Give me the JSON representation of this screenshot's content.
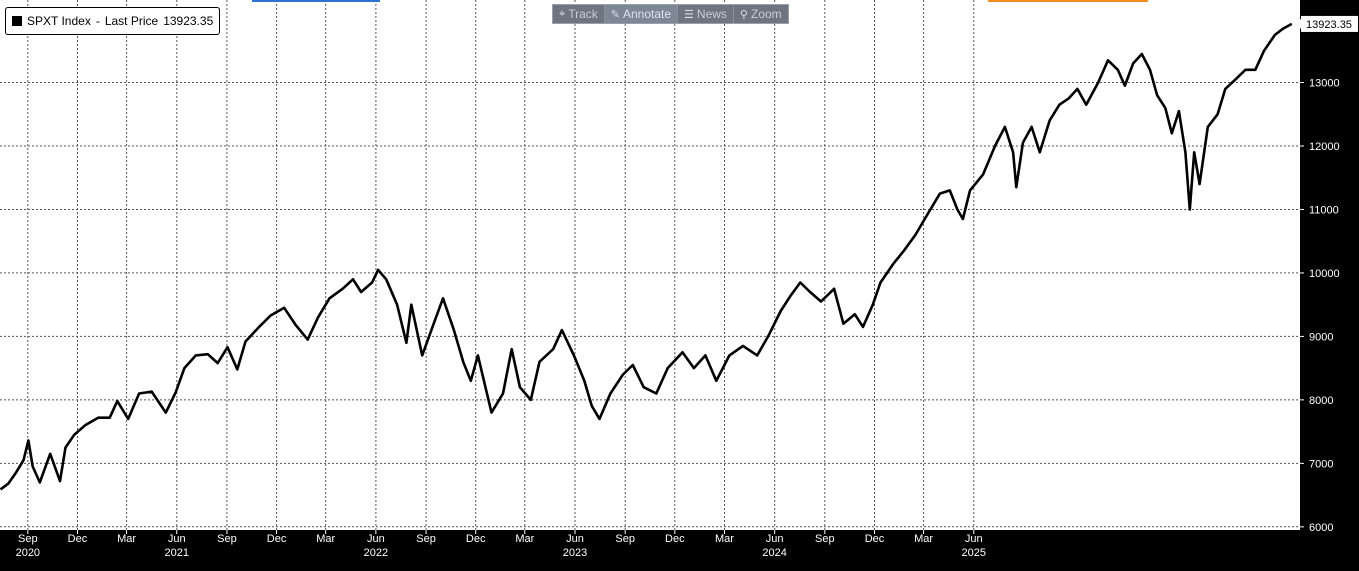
{
  "toolbar": {
    "buttons": [
      {
        "label": "Track",
        "icon": "crosshair-icon",
        "glyph": "⌖"
      },
      {
        "label": "Annotate",
        "icon": "pencil-icon",
        "glyph": "✎"
      },
      {
        "label": "News",
        "icon": "news-icon",
        "glyph": "☰"
      },
      {
        "label": "Zoom",
        "icon": "magnifier-icon",
        "glyph": "⚲"
      }
    ],
    "active": "Annotate"
  },
  "legend": {
    "series": "SPXT Index",
    "separator": "-",
    "field": "Last Price",
    "value": "13923.35"
  },
  "chart_data": {
    "type": "line",
    "series": [
      {
        "name": "SPXT Index - Last Price",
        "color": "#000000",
        "points": [
          [
            "2020-07-13",
            6590
          ],
          [
            "2020-07-27",
            6680
          ],
          [
            "2020-08-10",
            6850
          ],
          [
            "2020-08-24",
            7050
          ],
          [
            "2020-09-02",
            7360
          ],
          [
            "2020-09-10",
            6950
          ],
          [
            "2020-09-23",
            6700
          ],
          [
            "2020-10-12",
            7150
          ],
          [
            "2020-10-30",
            6720
          ],
          [
            "2020-11-09",
            7250
          ],
          [
            "2020-11-25",
            7450
          ],
          [
            "2020-12-15",
            7600
          ],
          [
            "2021-01-08",
            7720
          ],
          [
            "2021-01-29",
            7720
          ],
          [
            "2021-02-12",
            7980
          ],
          [
            "2021-03-04",
            7700
          ],
          [
            "2021-03-24",
            8100
          ],
          [
            "2021-04-16",
            8130
          ],
          [
            "2021-05-12",
            7800
          ],
          [
            "2021-05-30",
            8120
          ],
          [
            "2021-06-15",
            8500
          ],
          [
            "2021-07-06",
            8700
          ],
          [
            "2021-07-28",
            8720
          ],
          [
            "2021-08-15",
            8580
          ],
          [
            "2021-09-02",
            8830
          ],
          [
            "2021-09-20",
            8480
          ],
          [
            "2021-10-05",
            8920
          ],
          [
            "2021-10-30",
            9150
          ],
          [
            "2021-11-20",
            9330
          ],
          [
            "2021-12-15",
            9450
          ],
          [
            "2022-01-05",
            9180
          ],
          [
            "2022-01-27",
            8950
          ],
          [
            "2022-02-15",
            9300
          ],
          [
            "2022-03-08",
            9600
          ],
          [
            "2022-04-01",
            9750
          ],
          [
            "2022-04-20",
            9900
          ],
          [
            "2022-05-05",
            9700
          ],
          [
            "2022-05-25",
            9850
          ],
          [
            "2022-06-05",
            10050
          ],
          [
            "2022-06-20",
            9900
          ],
          [
            "2022-07-10",
            9500
          ],
          [
            "2022-07-27",
            8900
          ],
          [
            "2022-08-05",
            9500
          ],
          [
            "2022-08-25",
            8700
          ],
          [
            "2022-09-15",
            9200
          ],
          [
            "2022-10-02",
            9600
          ],
          [
            "2022-10-22",
            9100
          ],
          [
            "2022-11-08",
            8600
          ],
          [
            "2022-11-22",
            8300
          ],
          [
            "2022-12-05",
            8700
          ],
          [
            "2022-12-30",
            7800
          ],
          [
            "2023-01-20",
            8100
          ],
          [
            "2023-02-05",
            8800
          ],
          [
            "2023-02-20",
            8200
          ],
          [
            "2023-03-12",
            8000
          ],
          [
            "2023-03-28",
            8600
          ],
          [
            "2023-04-22",
            8800
          ],
          [
            "2023-05-08",
            9100
          ],
          [
            "2023-05-30",
            8700
          ],
          [
            "2023-06-18",
            8300
          ],
          [
            "2023-07-02",
            7900
          ],
          [
            "2023-07-16",
            7700
          ],
          [
            "2023-08-05",
            8100
          ],
          [
            "2023-08-28",
            8400
          ],
          [
            "2023-09-15",
            8550
          ],
          [
            "2023-10-05",
            8200
          ],
          [
            "2023-10-28",
            8100
          ],
          [
            "2023-11-18",
            8500
          ],
          [
            "2023-12-15",
            8750
          ],
          [
            "2024-01-05",
            8500
          ],
          [
            "2024-01-26",
            8700
          ],
          [
            "2024-02-15",
            8300
          ],
          [
            "2024-03-10",
            8700
          ],
          [
            "2024-04-04",
            8850
          ],
          [
            "2024-04-30",
            8700
          ],
          [
            "2024-05-20",
            9000
          ],
          [
            "2024-06-12",
            9400
          ],
          [
            "2024-07-01",
            9650
          ],
          [
            "2024-07-18",
            9850
          ],
          [
            "2024-08-05",
            9700
          ],
          [
            "2024-08-25",
            9550
          ],
          [
            "2024-09-18",
            9750
          ],
          [
            "2024-10-05",
            9200
          ],
          [
            "2024-10-26",
            9350
          ],
          [
            "2024-11-10",
            9150
          ],
          [
            "2024-11-28",
            9500
          ],
          [
            "2024-12-12",
            9850
          ],
          [
            "2025-01-05",
            10150
          ],
          [
            "2025-01-24",
            10350
          ],
          [
            "2025-02-14",
            10600
          ],
          [
            "2025-03-10",
            10950
          ],
          [
            "2025-03-31",
            11250
          ],
          [
            "2025-04-18",
            11300
          ],
          [
            "2025-05-02",
            11000
          ],
          [
            "2025-05-12",
            10850
          ],
          [
            "2025-05-25",
            11300
          ],
          [
            "2025-06-18",
            11550
          ],
          [
            "2025-07-10",
            12000
          ],
          [
            "2025-07-28",
            12300
          ],
          [
            "2025-08-12",
            11900
          ],
          [
            "2025-08-18",
            11350
          ],
          [
            "2025-08-30",
            12050
          ],
          [
            "2025-09-15",
            12300
          ],
          [
            "2025-09-30",
            11900
          ],
          [
            "2025-10-18",
            12400
          ],
          [
            "2025-11-05",
            12650
          ],
          [
            "2025-11-22",
            12750
          ],
          [
            "2025-12-08",
            12900
          ],
          [
            "2025-12-24",
            12650
          ],
          [
            "2026-01-15",
            13000
          ],
          [
            "2026-02-02",
            13350
          ],
          [
            "2026-02-20",
            13200
          ],
          [
            "2026-03-05",
            12950
          ],
          [
            "2026-03-20",
            13300
          ],
          [
            "2026-04-05",
            13450
          ],
          [
            "2026-04-20",
            13200
          ],
          [
            "2026-05-03",
            12800
          ],
          [
            "2026-05-18",
            12600
          ],
          [
            "2026-05-30",
            12200
          ],
          [
            "2026-06-12",
            12550
          ],
          [
            "2026-06-24",
            11900
          ],
          [
            "2026-07-02",
            11000
          ],
          [
            "2026-07-10",
            11900
          ],
          [
            "2026-07-20",
            11400
          ],
          [
            "2026-08-04",
            12300
          ],
          [
            "2026-08-22",
            12500
          ],
          [
            "2026-09-05",
            12900
          ],
          [
            "2026-09-24",
            13050
          ],
          [
            "2026-10-12",
            13200
          ],
          [
            "2026-10-30",
            13200
          ],
          [
            "2026-11-15",
            13500
          ],
          [
            "2026-12-05",
            13750
          ],
          [
            "2026-12-20",
            13850
          ],
          [
            "2027-01-05",
            13923
          ]
        ]
      }
    ],
    "y_axis": {
      "position": "right",
      "ylim": [
        5950,
        14300
      ],
      "ticks": [
        6000,
        7000,
        8000,
        9000,
        10000,
        11000,
        12000,
        13000
      ]
    },
    "x_axis": {
      "xlim": [
        "2020-07-12",
        "2027-01-20"
      ],
      "ticks": [
        {
          "date": "2020-09-01",
          "label": "Sep"
        },
        {
          "date": "2020-12-01",
          "label": "Dec"
        },
        {
          "date": "2021-03-01",
          "label": "Mar"
        },
        {
          "date": "2021-06-01",
          "label": "Jun"
        },
        {
          "date": "2021-09-01",
          "label": "Sep"
        },
        {
          "date": "2021-12-01",
          "label": "Dec"
        },
        {
          "date": "2022-03-01",
          "label": "Mar"
        },
        {
          "date": "2022-06-01",
          "label": "Jun"
        },
        {
          "date": "2022-09-01",
          "label": "Sep"
        },
        {
          "date": "2022-12-01",
          "label": "Dec"
        },
        {
          "date": "2023-03-01",
          "label": "Mar"
        },
        {
          "date": "2023-06-01",
          "label": "Jun"
        },
        {
          "date": "2023-09-01",
          "label": "Sep"
        },
        {
          "date": "2023-12-01",
          "label": "Dec"
        },
        {
          "date": "2024-03-01",
          "label": "Mar"
        },
        {
          "date": "2024-06-01",
          "label": "Jun"
        },
        {
          "date": "2024-09-01",
          "label": "Sep"
        },
        {
          "date": "2024-12-01",
          "label": "Dec"
        },
        {
          "date": "2025-03-01",
          "label": "Mar"
        },
        {
          "date": "2025-06-01",
          "label": "Jun"
        }
      ],
      "year_labels": [
        {
          "date": "2020-09-01",
          "label": "2020"
        },
        {
          "date": "2021-06-01",
          "label": "2021"
        },
        {
          "date": "2022-06-01",
          "label": "2022"
        },
        {
          "date": "2023-06-01",
          "label": "2023"
        },
        {
          "date": "2024-06-01",
          "label": "2024"
        },
        {
          "date": "2025-06-01",
          "label": "2025"
        }
      ]
    },
    "last_value_label": "13923.35",
    "grid": true,
    "colors": {
      "background": "#ffffff",
      "line": "#000000",
      "grid": "#555555",
      "axis_band": "#000000",
      "axis_text": "#ffffff"
    }
  }
}
